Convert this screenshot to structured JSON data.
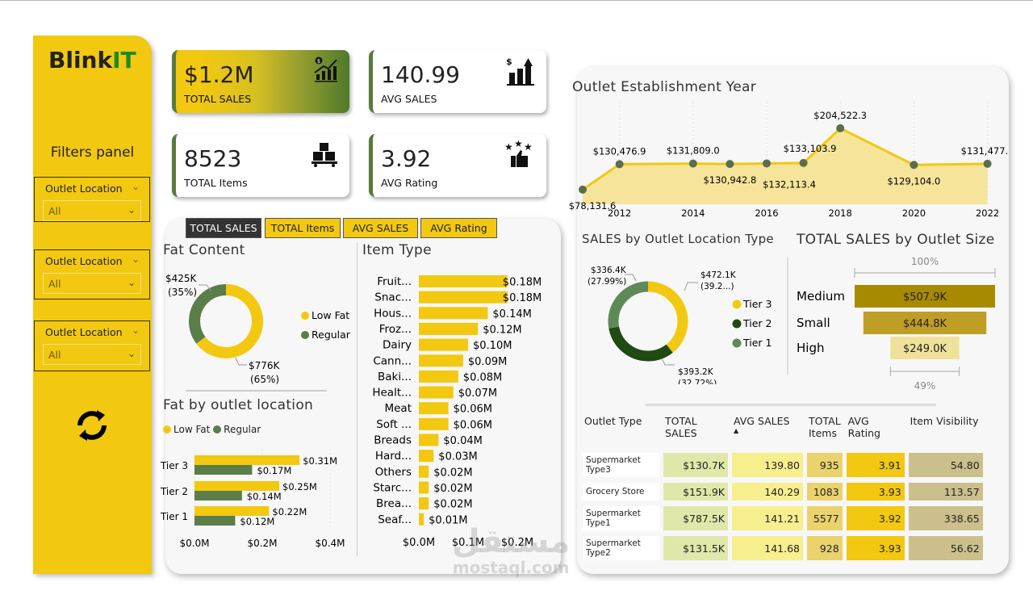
{
  "sidebar": {
    "logo": {
      "prefix": "Blink",
      "suffix": "IT"
    },
    "filters_title": "Filters panel",
    "filters": [
      {
        "label": "Outlet Location",
        "value": "All"
      },
      {
        "label": "Outlet Location",
        "value": "All"
      },
      {
        "label": "Outlet Location",
        "value": "All"
      }
    ],
    "refresh_icon": "refresh-icon"
  },
  "kpis": [
    {
      "value": "$1.2M",
      "caption": "TOTAL SALES",
      "icon": "money-growth-chart-icon"
    },
    {
      "value": "140.99",
      "caption": "AVG SALES",
      "icon": "dollar-bar-chart-icon"
    },
    {
      "value": "8523",
      "caption": "TOTAL Items",
      "icon": "boxes-cart-icon"
    },
    {
      "value": "3.92",
      "caption": "AVG Rating",
      "icon": "stars-thumbs-up-icon"
    }
  ],
  "tabs": [
    {
      "label": "TOTAL SALES",
      "active": true
    },
    {
      "label": "TOTAL Items",
      "active": false
    },
    {
      "label": "AVG SALES",
      "active": false
    },
    {
      "label": "AVG Rating",
      "active": false
    }
  ],
  "colors": {
    "yellow": "#f2c811",
    "green": "#5a7d4a",
    "dark_green": "#1f4a12",
    "mid_green": "#5e8a57"
  },
  "chart_data": [
    {
      "id": "fat-content",
      "type": "pie",
      "title": "Fat Content",
      "slices": [
        {
          "name": "Low Fat",
          "value": 776,
          "label": "$776K",
          "pct": "(65%)",
          "color": "#f2c811"
        },
        {
          "name": "Regular",
          "value": 425,
          "label": "$425K",
          "pct": "(35%)",
          "color": "#5a7d4a"
        }
      ],
      "legend": "right"
    },
    {
      "id": "fat-by-outlet",
      "type": "bar",
      "title": "Fat by outlet location",
      "categories": [
        "Tier 3",
        "Tier 2",
        "Tier 1"
      ],
      "series": [
        {
          "name": "Low Fat",
          "values": [
            0.31,
            0.25,
            0.22
          ],
          "labels": [
            "$0.31M",
            "$0.25M",
            "$0.22M"
          ],
          "color": "#f2c811"
        },
        {
          "name": "Regular",
          "values": [
            0.17,
            0.14,
            0.12
          ],
          "labels": [
            "$0.17M",
            "$0.14M",
            "$0.12M"
          ],
          "color": "#5a7d4a"
        }
      ],
      "xlim": [
        0,
        0.4
      ],
      "xticks": [
        "$0.0M",
        "$0.2M",
        "$0.4M"
      ],
      "legend": "top-left"
    },
    {
      "id": "item-type",
      "type": "bar",
      "title": "Item Type",
      "categories": [
        "Fruit...",
        "Snac...",
        "Hous...",
        "Froz...",
        "Dairy",
        "Cann...",
        "Baki...",
        "Healt...",
        "Meat",
        "Soft ...",
        "Breads",
        "Hard...",
        "Others",
        "Starc...",
        "Brea...",
        "Seaf..."
      ],
      "values": [
        0.18,
        0.18,
        0.14,
        0.12,
        0.1,
        0.09,
        0.08,
        0.07,
        0.06,
        0.06,
        0.04,
        0.03,
        0.02,
        0.02,
        0.02,
        0.01
      ],
      "labels": [
        "$0.18M",
        "$0.18M",
        "$0.14M",
        "$0.12M",
        "$0.10M",
        "$0.09M",
        "$0.08M",
        "$0.07M",
        "$0.06M",
        "$0.06M",
        "$0.04M",
        "$0.03M",
        "$0.02M",
        "$0.02M",
        "$0.02M",
        "$0.01M"
      ],
      "xlim": [
        0,
        0.2
      ],
      "xticks": [
        "$0.0M",
        "$0.1M",
        "$0.2M"
      ],
      "color": "#f2c811"
    },
    {
      "id": "establishment-year",
      "type": "area",
      "title": "Outlet Establishment Year",
      "x": [
        2011,
        2012,
        2014,
        2015,
        2016,
        2017,
        2018,
        2020,
        2022
      ],
      "y": [
        78131.6,
        130476.9,
        131809.0,
        130942.8,
        132113.4,
        133103.9,
        204522.3,
        129104.0,
        131477.8
      ],
      "labels": [
        "$78,131.6",
        "$130,476.9",
        "$131,809.0",
        "$130,942.8",
        "$132,113.4",
        "$133,103.9",
        "$204,522.3",
        "$129,104.0",
        "$131,477.8"
      ],
      "xticks": [
        "2012",
        "2014",
        "2016",
        "2018",
        "2020",
        "2022"
      ],
      "xlim": [
        2011,
        2022
      ],
      "grid": "vertical dotted",
      "line_color": "#f2c811",
      "marker_color": "#5a6e4a"
    },
    {
      "id": "location-type",
      "type": "pie",
      "title": "SALES by Outlet Location Type",
      "slices": [
        {
          "name": "Tier 3",
          "value": 472.1,
          "label": "$472.1K",
          "pct": "(39.2...)",
          "color": "#f2c811"
        },
        {
          "name": "Tier 2",
          "value": 393.2,
          "label": "$393.2K",
          "pct": "(32.72%)",
          "color": "#1f4a12"
        },
        {
          "name": "Tier 1",
          "value": 336.4,
          "label": "$336.4K",
          "pct": "(27.99%)",
          "color": "#5e8a57"
        }
      ],
      "legend": "right"
    },
    {
      "id": "outlet-size",
      "type": "bar",
      "title": "TOTAL SALES by Outlet Size",
      "categories": [
        "Medium",
        "Small",
        "High"
      ],
      "values": [
        507.9,
        444.8,
        249.0
      ],
      "labels": [
        "$507.9K",
        "$444.8K",
        "$249.0K"
      ],
      "colors": [
        "#a88a00",
        "#bf9e26",
        "#f0e19a"
      ],
      "top_label": "100%",
      "bottom_label": "49%"
    }
  ],
  "table": {
    "columns": [
      "Outlet Type",
      "TOTAL SALES",
      "AVG SALES",
      "TOTAL Items",
      "AVG Rating",
      "Item Visibility"
    ],
    "sorted_column": "AVG SALES",
    "sort_direction": "ascending",
    "column_colors": [
      "#dfe8a8",
      "#f7ee8e",
      "#ead26c",
      "#f2c811",
      "#cbbf8c"
    ],
    "rows": [
      [
        "Supermarket Type3",
        "$130.7K",
        "139.80",
        "935",
        "3.91",
        "54.80"
      ],
      [
        "Grocery Store",
        "$151.9K",
        "140.29",
        "1083",
        "3.93",
        "113.57"
      ],
      [
        "Supermarket Type1",
        "$787.5K",
        "141.21",
        "5577",
        "3.92",
        "338.65"
      ],
      [
        "Supermarket Type2",
        "$131.5K",
        "141.68",
        "928",
        "3.93",
        "56.62"
      ]
    ]
  },
  "watermark": {
    "arabic": "مستقل",
    "latin": "mostaql.com"
  }
}
